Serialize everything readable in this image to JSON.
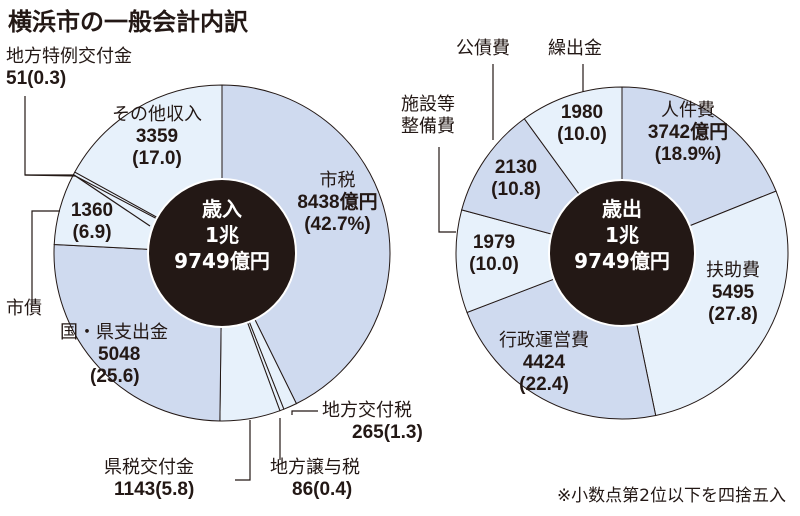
{
  "title": "横浜市の一般会計内訳",
  "note": "※小数点第2位以下を四捨五入",
  "colors": {
    "dark_slice": "#cfdaef",
    "light_slice": "#e7f1fb",
    "center": "#231815",
    "line": "#231815"
  },
  "revenue": {
    "center_label": "歳入",
    "center_total_1": "1兆",
    "center_total_2": "9749億円",
    "items": [
      {
        "name": "市税",
        "value": "8438億円",
        "pct": "(42.7%)"
      },
      {
        "name": "地方交付税",
        "value": "265",
        "pct": "(1.3)"
      },
      {
        "name": "地方譲与税",
        "value": "86",
        "pct": "(0.4)"
      },
      {
        "name": "県税交付金",
        "value": "1143",
        "pct": "(5.8)"
      },
      {
        "name": "国・県支出金",
        "value": "5048",
        "pct": "(25.6)"
      },
      {
        "name": "市債",
        "value": "1360",
        "pct": "(6.9)"
      },
      {
        "name": "地方特例交付金",
        "value": "51",
        "pct": "(0.3)"
      },
      {
        "name": "その他収入",
        "value": "3359",
        "pct": "(17.0)"
      }
    ]
  },
  "expenditure": {
    "center_label": "歳出",
    "center_total_1": "1兆",
    "center_total_2": "9749億円",
    "items": [
      {
        "name": "人件費",
        "value": "3742億円",
        "pct": "(18.9%)"
      },
      {
        "name": "扶助費",
        "value": "5495",
        "pct": "(27.8)"
      },
      {
        "name": "行政運営費",
        "value": "4424",
        "pct": "(22.4)"
      },
      {
        "name": "施設等整備費",
        "name_line1": "施設等",
        "name_line2": "整備費",
        "value": "1979",
        "pct": "(10.0)"
      },
      {
        "name": "公債費",
        "value": "2130",
        "pct": "(10.8)"
      },
      {
        "name": "繰出金",
        "value": "1980",
        "pct": "(10.0)"
      }
    ]
  },
  "chart_data": [
    {
      "type": "pie",
      "title": "歳入 1兆9749億円",
      "unit": "億円",
      "categories": [
        "市税",
        "地方交付税",
        "地方譲与税",
        "県税交付金",
        "国・県支出金",
        "市債",
        "地方特例交付金",
        "その他収入"
      ],
      "values": [
        8438,
        265,
        86,
        1143,
        5048,
        1360,
        51,
        3359
      ],
      "percentages": [
        42.7,
        1.3,
        0.4,
        5.8,
        25.6,
        6.9,
        0.3,
        17.0
      ],
      "donut": true
    },
    {
      "type": "pie",
      "title": "歳出 1兆9749億円",
      "unit": "億円",
      "categories": [
        "人件費",
        "扶助費",
        "行政運営費",
        "施設等整備費",
        "公債費",
        "繰出金"
      ],
      "values": [
        3742,
        5495,
        4424,
        1979,
        2130,
        1980
      ],
      "percentages": [
        18.9,
        27.8,
        22.4,
        10.0,
        10.8,
        10.0
      ],
      "donut": true
    }
  ]
}
